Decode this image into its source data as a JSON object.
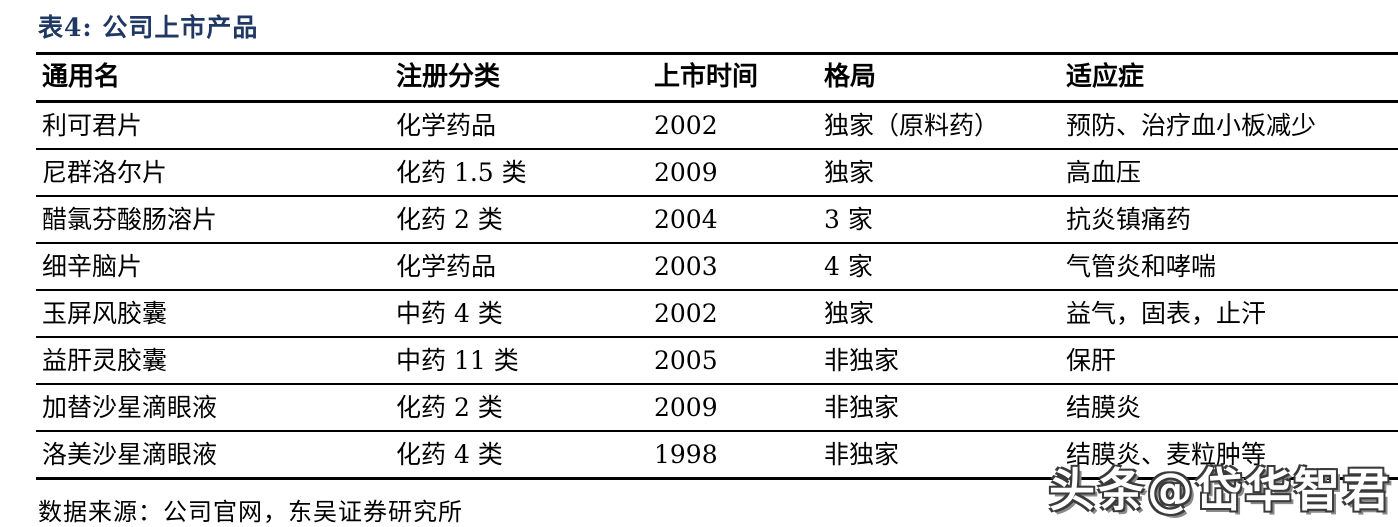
{
  "title": "表4:  公司上市产品",
  "table": {
    "columns": [
      "通用名",
      "注册分类",
      "上市时间",
      "格局",
      "适应症"
    ],
    "rows": [
      [
        "利可君片",
        "化学药品",
        "2002",
        "独家（原料药）",
        "预防、治疗血小板减少"
      ],
      [
        "尼群洛尔片",
        "化药 1.5 类",
        "2009",
        "独家",
        "高血压"
      ],
      [
        "醋氯芬酸肠溶片",
        "化药 2 类",
        "2004",
        "3 家",
        "抗炎镇痛药"
      ],
      [
        "细辛脑片",
        "化学药品",
        "2003",
        "4 家",
        "气管炎和哮喘"
      ],
      [
        "玉屏风胶囊",
        "中药 4 类",
        "2002",
        "独家",
        "益气，固表，止汗"
      ],
      [
        "益肝灵胶囊",
        "中药 11 类",
        "2005",
        "非独家",
        "保肝"
      ],
      [
        "加替沙星滴眼液",
        "化药 2 类",
        "2009",
        "非独家",
        "结膜炎"
      ],
      [
        "洛美沙星滴眼液",
        "化药 4 类",
        "1998",
        "非独家",
        "结膜炎、麦粒肿等"
      ]
    ]
  },
  "footer": {
    "source": "数据来源：公司官网，东吴证券研究所"
  },
  "watermark": {
    "text": "头条@岱华智君"
  },
  "colors": {
    "title": "#1f3864",
    "text": "#000000",
    "line": "#000000",
    "background": "#ffffff"
  }
}
